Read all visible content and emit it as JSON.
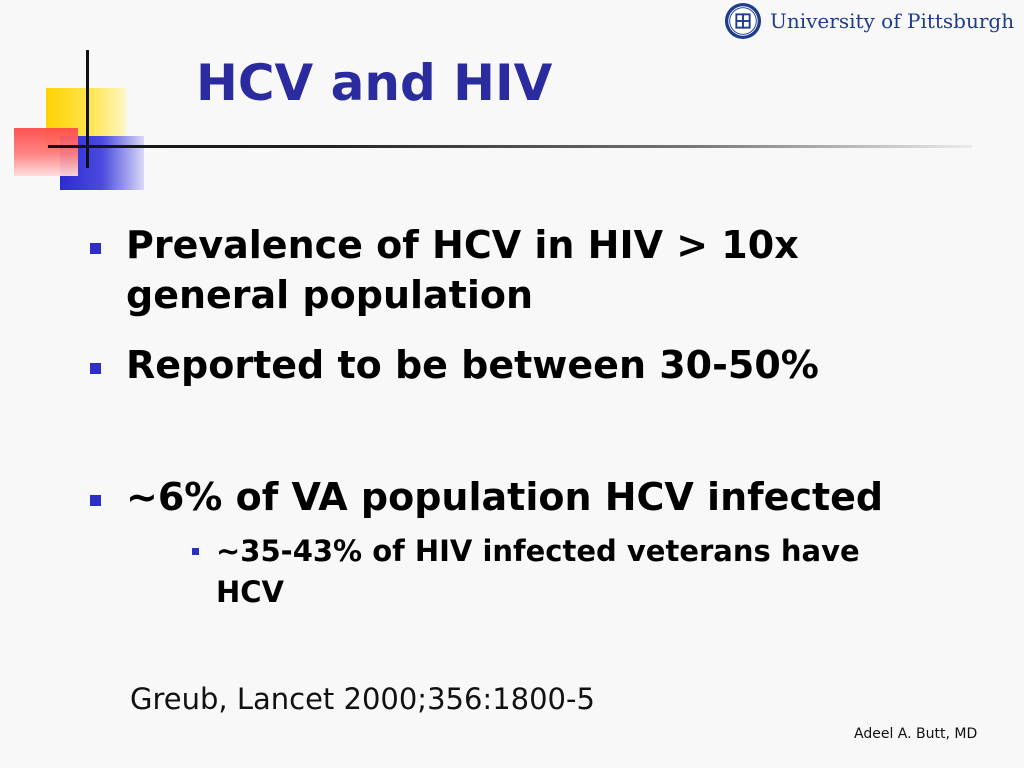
{
  "logo": {
    "text": "University of Pittsburgh"
  },
  "slide": {
    "title": "HCV and HIV",
    "bullets": [
      {
        "text": "Prevalence of HCV in HIV > 10x general population"
      },
      {
        "text": "Reported to be between 30-50%"
      },
      {
        "text": "~6% of VA population HCV infected"
      }
    ],
    "sub_bullets": [
      {
        "text": "~35-43% of HIV infected veterans have HCV"
      }
    ],
    "citation": "Greub, Lancet 2000;356:1800-5",
    "author": "Adeel A. Butt, MD"
  },
  "colors": {
    "title": "#2b2ba0",
    "bullet": "#2d2dc8",
    "logo_text": "#1d3c8c",
    "background": "#f8f8f8"
  }
}
